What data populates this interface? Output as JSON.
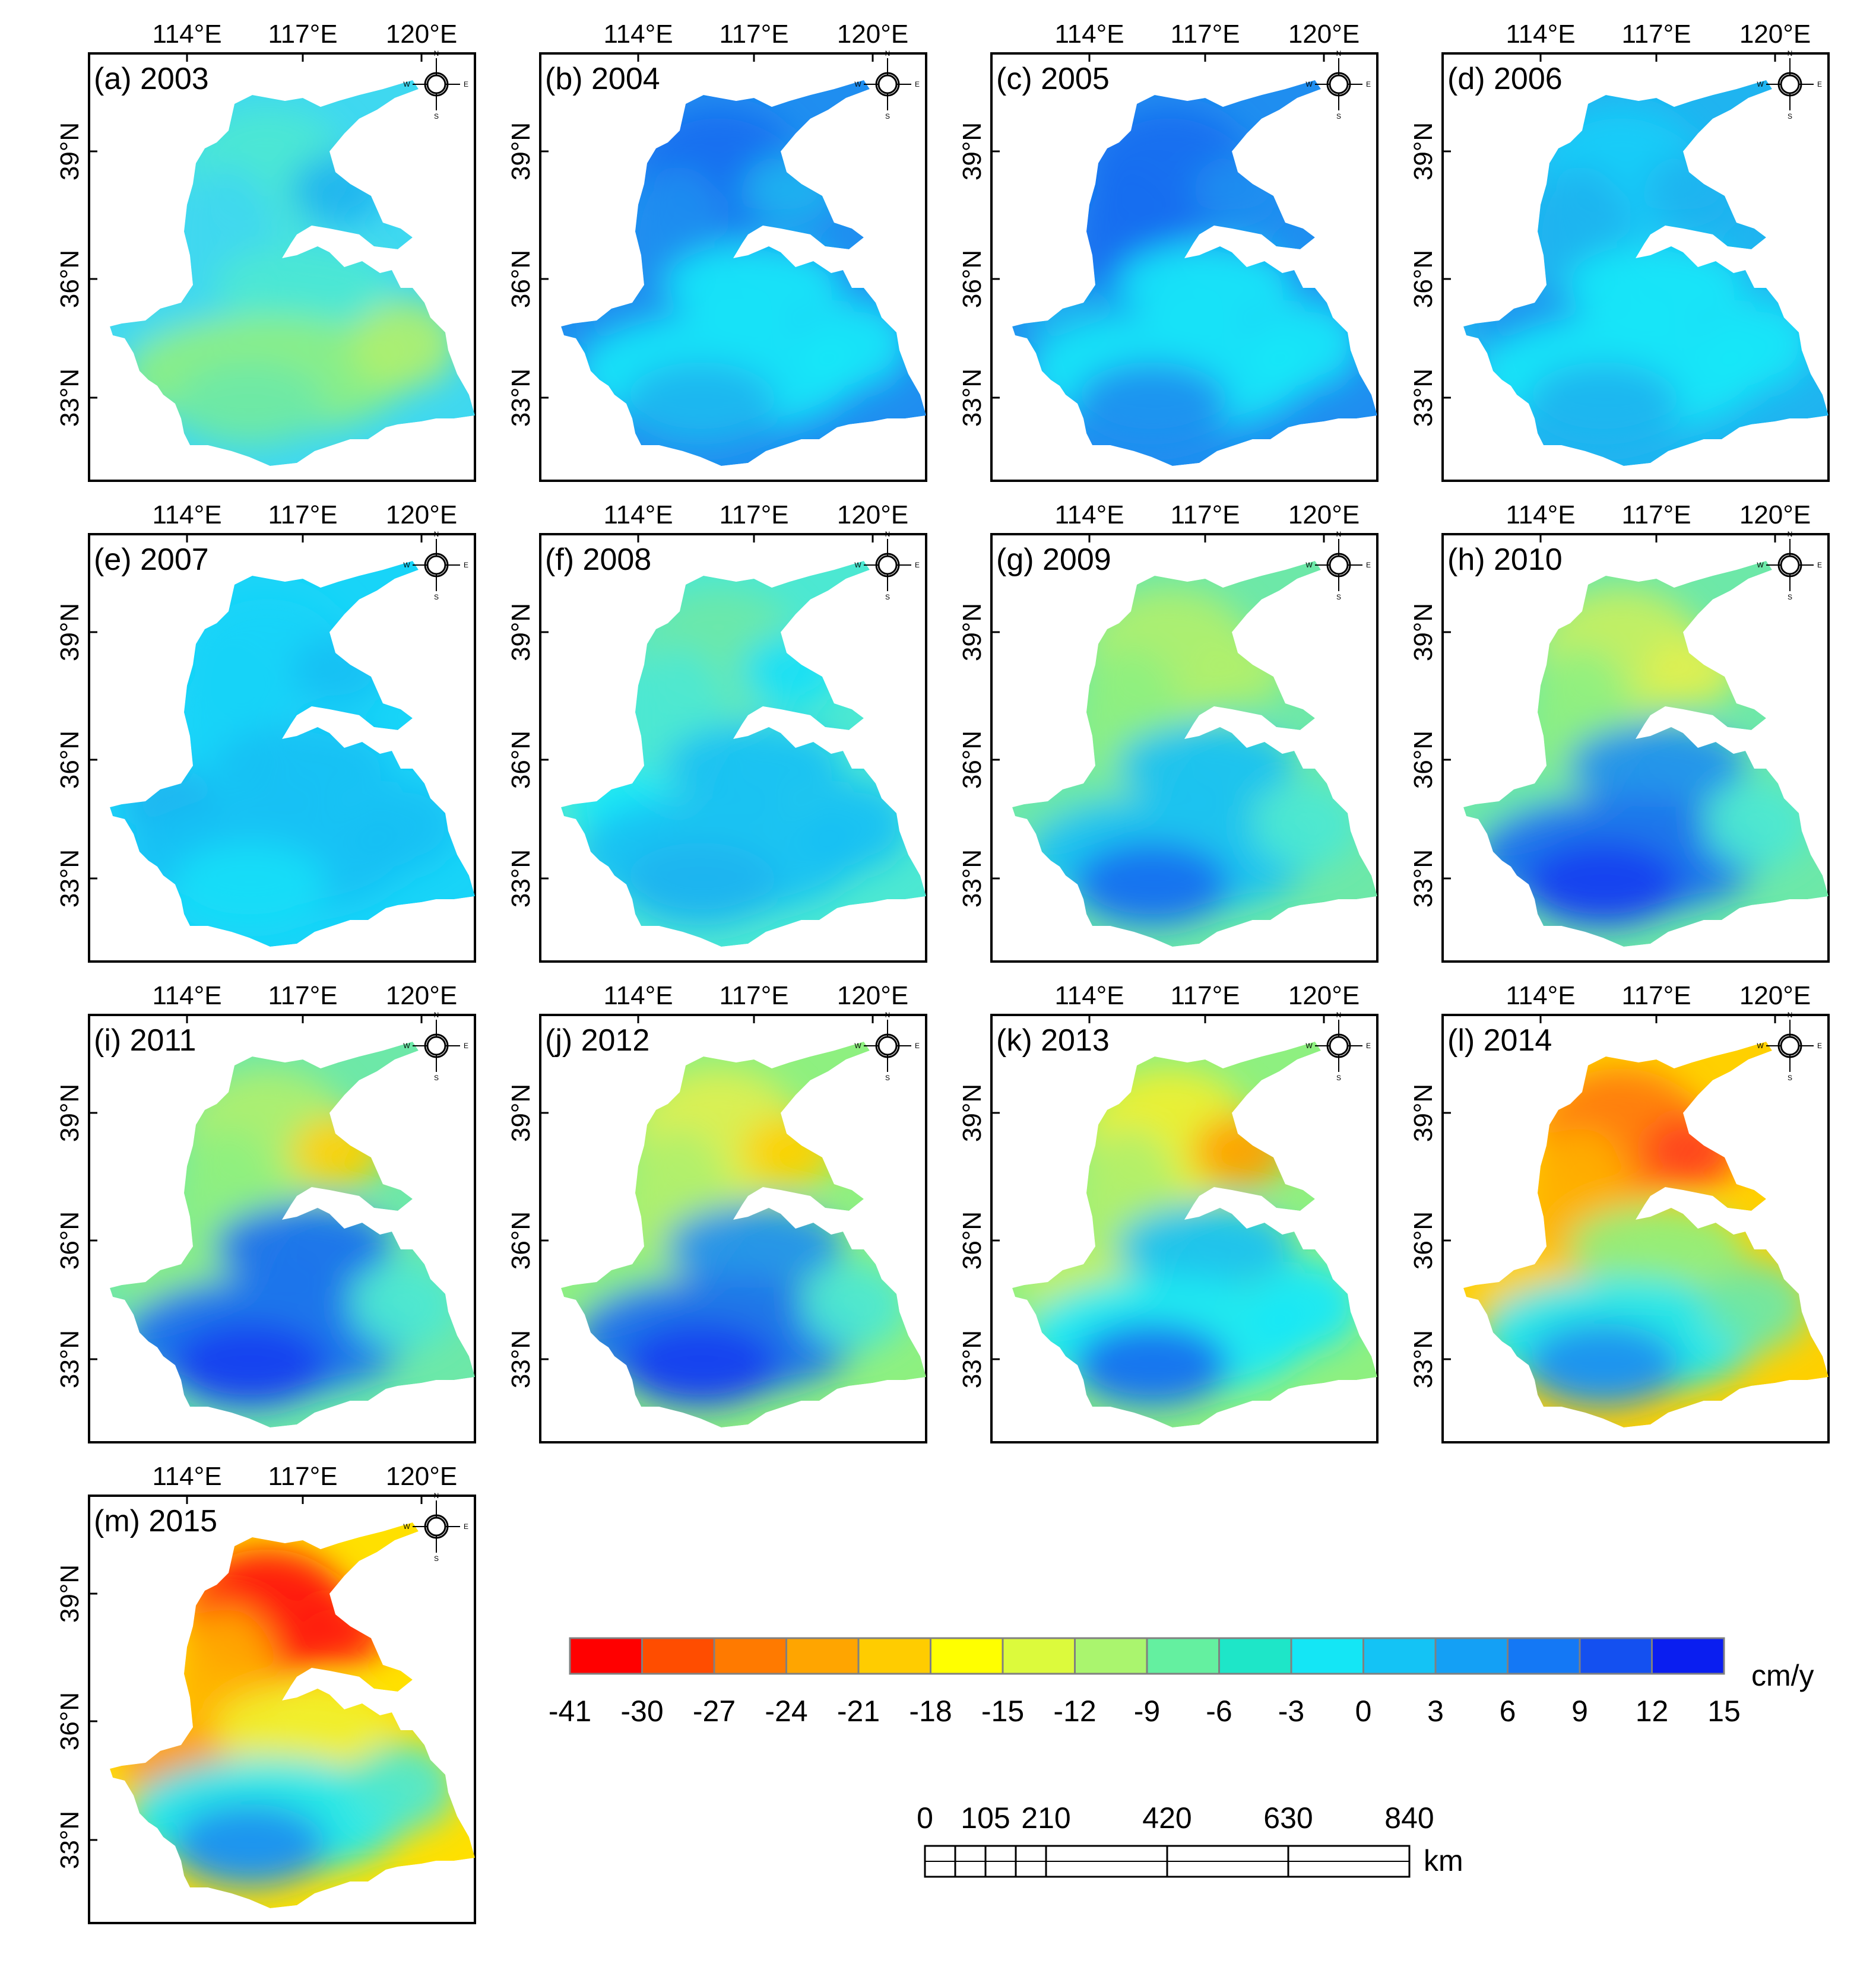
{
  "axes": {
    "lon_ticks": [
      "114°E",
      "117°E",
      "120°E"
    ],
    "lat_ticks": [
      "39°N",
      "36°N",
      "33°N"
    ]
  },
  "compass": {
    "n": "N",
    "s": "S",
    "e": "E",
    "w": "W"
  },
  "panels": [
    {
      "label": "(a) 2003",
      "palette": [
        "#3fd8f0",
        "#4ce8d2",
        "#3fd8f0",
        "#1fb4f0",
        "#3fd8f0",
        "#4ce8d2",
        "#8ef080",
        "#6de8a8",
        "#b0f06c"
      ]
    },
    {
      "label": "(b) 2004",
      "palette": [
        "#1f8ef0",
        "#1a6ef0",
        "#1f8ef0",
        "#1fb4f0",
        "#1f8ef0",
        "#18e8f8",
        "#18e8f8",
        "#1fb4f0",
        "#18e8f8"
      ]
    },
    {
      "label": "(c) 2005",
      "palette": [
        "#1f8ef0",
        "#1a6ef0",
        "#1a6ef0",
        "#1f8ef0",
        "#1fb4f0",
        "#18e8f8",
        "#18e8f8",
        "#1f8ef0",
        "#18e8f8"
      ]
    },
    {
      "label": "(d) 2006",
      "palette": [
        "#1fb4f0",
        "#18cef8",
        "#1fb4f0",
        "#1fb4f0",
        "#1f8ef0",
        "#18e8f8",
        "#18e8f8",
        "#1fb4f0",
        "#18e8f8"
      ]
    },
    {
      "label": "(e) 2007",
      "palette": [
        "#18d4f8",
        "#18d4f8",
        "#18d4f8",
        "#18c0f4",
        "#1fb4f0",
        "#18c0f4",
        "#18c0f4",
        "#18e0f8",
        "#18c0f4"
      ]
    },
    {
      "label": "(f) 2008",
      "palette": [
        "#4ce8d2",
        "#6de8a8",
        "#4ce8d2",
        "#18e0f8",
        "#18e8f8",
        "#18c0f4",
        "#18c0f4",
        "#1fb4f0",
        "#18c0f4"
      ]
    },
    {
      "label": "(g) 2009",
      "palette": [
        "#6de8a8",
        "#b0f06c",
        "#8ef080",
        "#b0f06c",
        "#6de8a8",
        "#18c0f4",
        "#18c0f4",
        "#1a6ef0",
        "#4ce8d2"
      ]
    },
    {
      "label": "(h) 2010",
      "palette": [
        "#6de8a8",
        "#c8f060",
        "#8ef080",
        "#e0f050",
        "#6de8a8",
        "#1f8ef0",
        "#1a6ef0",
        "#1a3ef0",
        "#4ce8d2"
      ]
    },
    {
      "label": "(i) 2011",
      "palette": [
        "#6de8a8",
        "#b0f06c",
        "#8ef080",
        "#ffd000",
        "#8ef080",
        "#1a6ef0",
        "#1a6ef0",
        "#1a3ef0",
        "#4ce8d2"
      ]
    },
    {
      "label": "(j) 2012",
      "palette": [
        "#8ef080",
        "#e0f050",
        "#b0f06c",
        "#ffd000",
        "#8ef080",
        "#1f8ef0",
        "#1a6ef0",
        "#1a3ef0",
        "#4ce8d2"
      ]
    },
    {
      "label": "(k) 2013",
      "palette": [
        "#8ef080",
        "#f0f030",
        "#b0f06c",
        "#ffa000",
        "#c8f060",
        "#18c0f4",
        "#18e8f8",
        "#1a6ef0",
        "#18e8f8"
      ]
    },
    {
      "label": "(l) 2014",
      "palette": [
        "#ffd000",
        "#ff7a10",
        "#ffb000",
        "#ff4020",
        "#ffd000",
        "#8ef080",
        "#18e8f8",
        "#1f8ef0",
        "#6de8a8"
      ]
    },
    {
      "label": "(m) 2015",
      "palette": [
        "#ffe000",
        "#ff1010",
        "#ffb000",
        "#ff2010",
        "#ff9000",
        "#f0f030",
        "#18e8f8",
        "#1f8ef0",
        "#4ce8d2"
      ]
    }
  ],
  "legend": {
    "unit": "cm/y",
    "colors": [
      "#ff0000",
      "#ff4d00",
      "#ff7a00",
      "#ffa500",
      "#ffcc00",
      "#ffff00",
      "#dcfa3c",
      "#aaf56e",
      "#64f0a0",
      "#1ee6c8",
      "#14e6f5",
      "#14c3f5",
      "#14a0f5",
      "#1478f5",
      "#1450f0",
      "#0a1ef0"
    ],
    "ticks": [
      "-41",
      "-30",
      "-27",
      "-24",
      "-21",
      "-18",
      "-15",
      "-12",
      "-9",
      "-6",
      "-3",
      "0",
      "3",
      "6",
      "9",
      "12",
      "15"
    ]
  },
  "scale_bar": {
    "ticks": [
      "0",
      "105",
      "210",
      "420",
      "630",
      "840"
    ],
    "tick_km": [
      0,
      105,
      210,
      420,
      630,
      840
    ],
    "unit": "km"
  }
}
